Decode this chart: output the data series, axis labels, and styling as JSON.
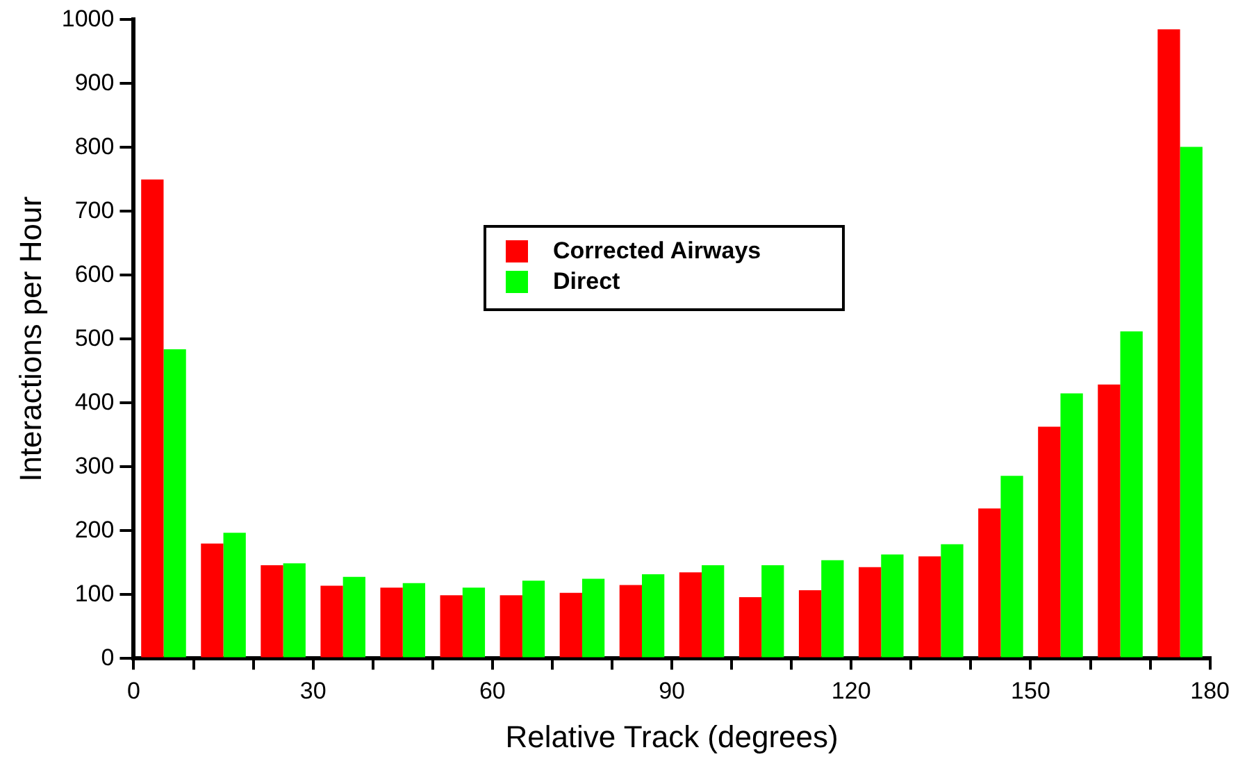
{
  "chart_data": {
    "type": "bar",
    "xlabel": "Relative Track (degrees)",
    "ylabel": "Interactions per Hour",
    "x": [
      5,
      15,
      25,
      35,
      45,
      55,
      65,
      75,
      85,
      95,
      105,
      115,
      125,
      135,
      145,
      155,
      165,
      175
    ],
    "series": [
      {
        "name": "Corrected Airways",
        "color": "#ff0000",
        "values": [
          750,
          180,
          146,
          114,
          111,
          99,
          99,
          103,
          115,
          135,
          96,
          107,
          143,
          160,
          235,
          363,
          429,
          985
        ]
      },
      {
        "name": "Direct",
        "color": "#00ff00",
        "values": [
          484,
          197,
          149,
          128,
          118,
          111,
          122,
          125,
          132,
          146,
          146,
          154,
          163,
          179,
          286,
          415,
          512,
          801
        ]
      }
    ],
    "xlim": [
      0,
      180
    ],
    "xticks": [
      0,
      {
        "value": 10,
        "label": null
      },
      {
        "value": 20,
        "label": null
      },
      30,
      {
        "value": 40,
        "label": null
      },
      {
        "value": 50,
        "label": null
      },
      60,
      {
        "value": 70,
        "label": null
      },
      {
        "value": 80,
        "label": null
      },
      90,
      {
        "value": 100,
        "label": null
      },
      {
        "value": 110,
        "label": null
      },
      120,
      {
        "value": 130,
        "label": null
      },
      {
        "value": 140,
        "label": null
      },
      150,
      {
        "value": 160,
        "label": null
      },
      {
        "value": 170,
        "label": null
      },
      180
    ],
    "ylim": [
      0,
      1000
    ],
    "yticks": [
      0,
      100,
      200,
      300,
      400,
      500,
      600,
      700,
      800,
      900,
      1000
    ],
    "grid": false,
    "legend": "top center"
  }
}
